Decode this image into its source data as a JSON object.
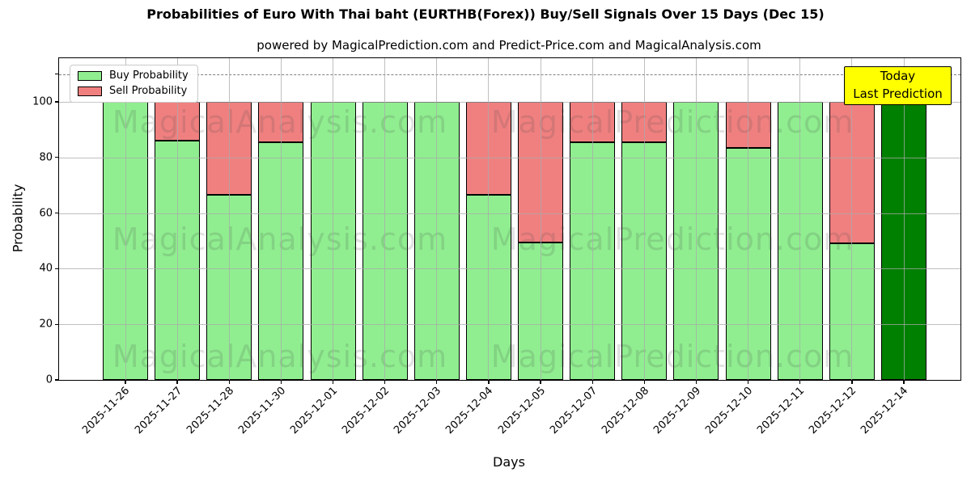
{
  "title": "Probabilities of Euro With Thai baht (EURTHB(Forex)) Buy/Sell Signals Over 15 Days (Dec 15)",
  "subtitle": "powered by MagicalPrediction.com and Predict-Price.com and MagicalAnalysis.com",
  "legend": {
    "items": [
      {
        "label": "Buy Probability",
        "color": "#90ee90"
      },
      {
        "label": "Sell Probability",
        "color": "#f08080"
      }
    ]
  },
  "annotation": {
    "line1": "Today",
    "line2": "Last Prediction",
    "bg_color": "#ffff00"
  },
  "watermarks": {
    "left": "MagicalAnalysis.com",
    "right": "MagicalPrediction.com"
  },
  "chart_data": {
    "type": "bar",
    "stacked": true,
    "title": "Probabilities of Euro With Thai baht (EURTHB(Forex)) Buy/Sell Signals Over 15 Days (Dec 15)",
    "xlabel": "Days",
    "ylabel": "Probability",
    "ylim": [
      0,
      115.7
    ],
    "yticks": [
      0,
      20,
      40,
      60,
      80,
      100
    ],
    "dashed_line_y": 110,
    "grid": true,
    "legend_position": "upper left",
    "categories": [
      "2025-11-26",
      "2025-11-27",
      "2025-11-28",
      "2025-11-30",
      "2025-12-01",
      "2025-12-02",
      "2025-12-03",
      "2025-12-04",
      "2025-12-05",
      "2025-12-07",
      "2025-12-08",
      "2025-12-09",
      "2025-12-10",
      "2025-12-11",
      "2025-12-12",
      "2025-12-14"
    ],
    "series": [
      {
        "name": "Buy Probability",
        "color": "#90ee90",
        "values": [
          100,
          86,
          66.5,
          85.5,
          100,
          100,
          100,
          66.5,
          49.5,
          85.5,
          85.5,
          100,
          83.5,
          100,
          49,
          100
        ]
      },
      {
        "name": "Sell Probability",
        "color": "#f08080",
        "values": [
          0,
          14,
          33.5,
          14.5,
          0,
          0,
          0,
          33.5,
          50.5,
          14.5,
          14.5,
          0,
          16.5,
          0,
          51,
          0
        ]
      }
    ],
    "today_bar": {
      "category": "2025-12-14",
      "color": "#008000",
      "note": "Today Last Prediction"
    }
  }
}
